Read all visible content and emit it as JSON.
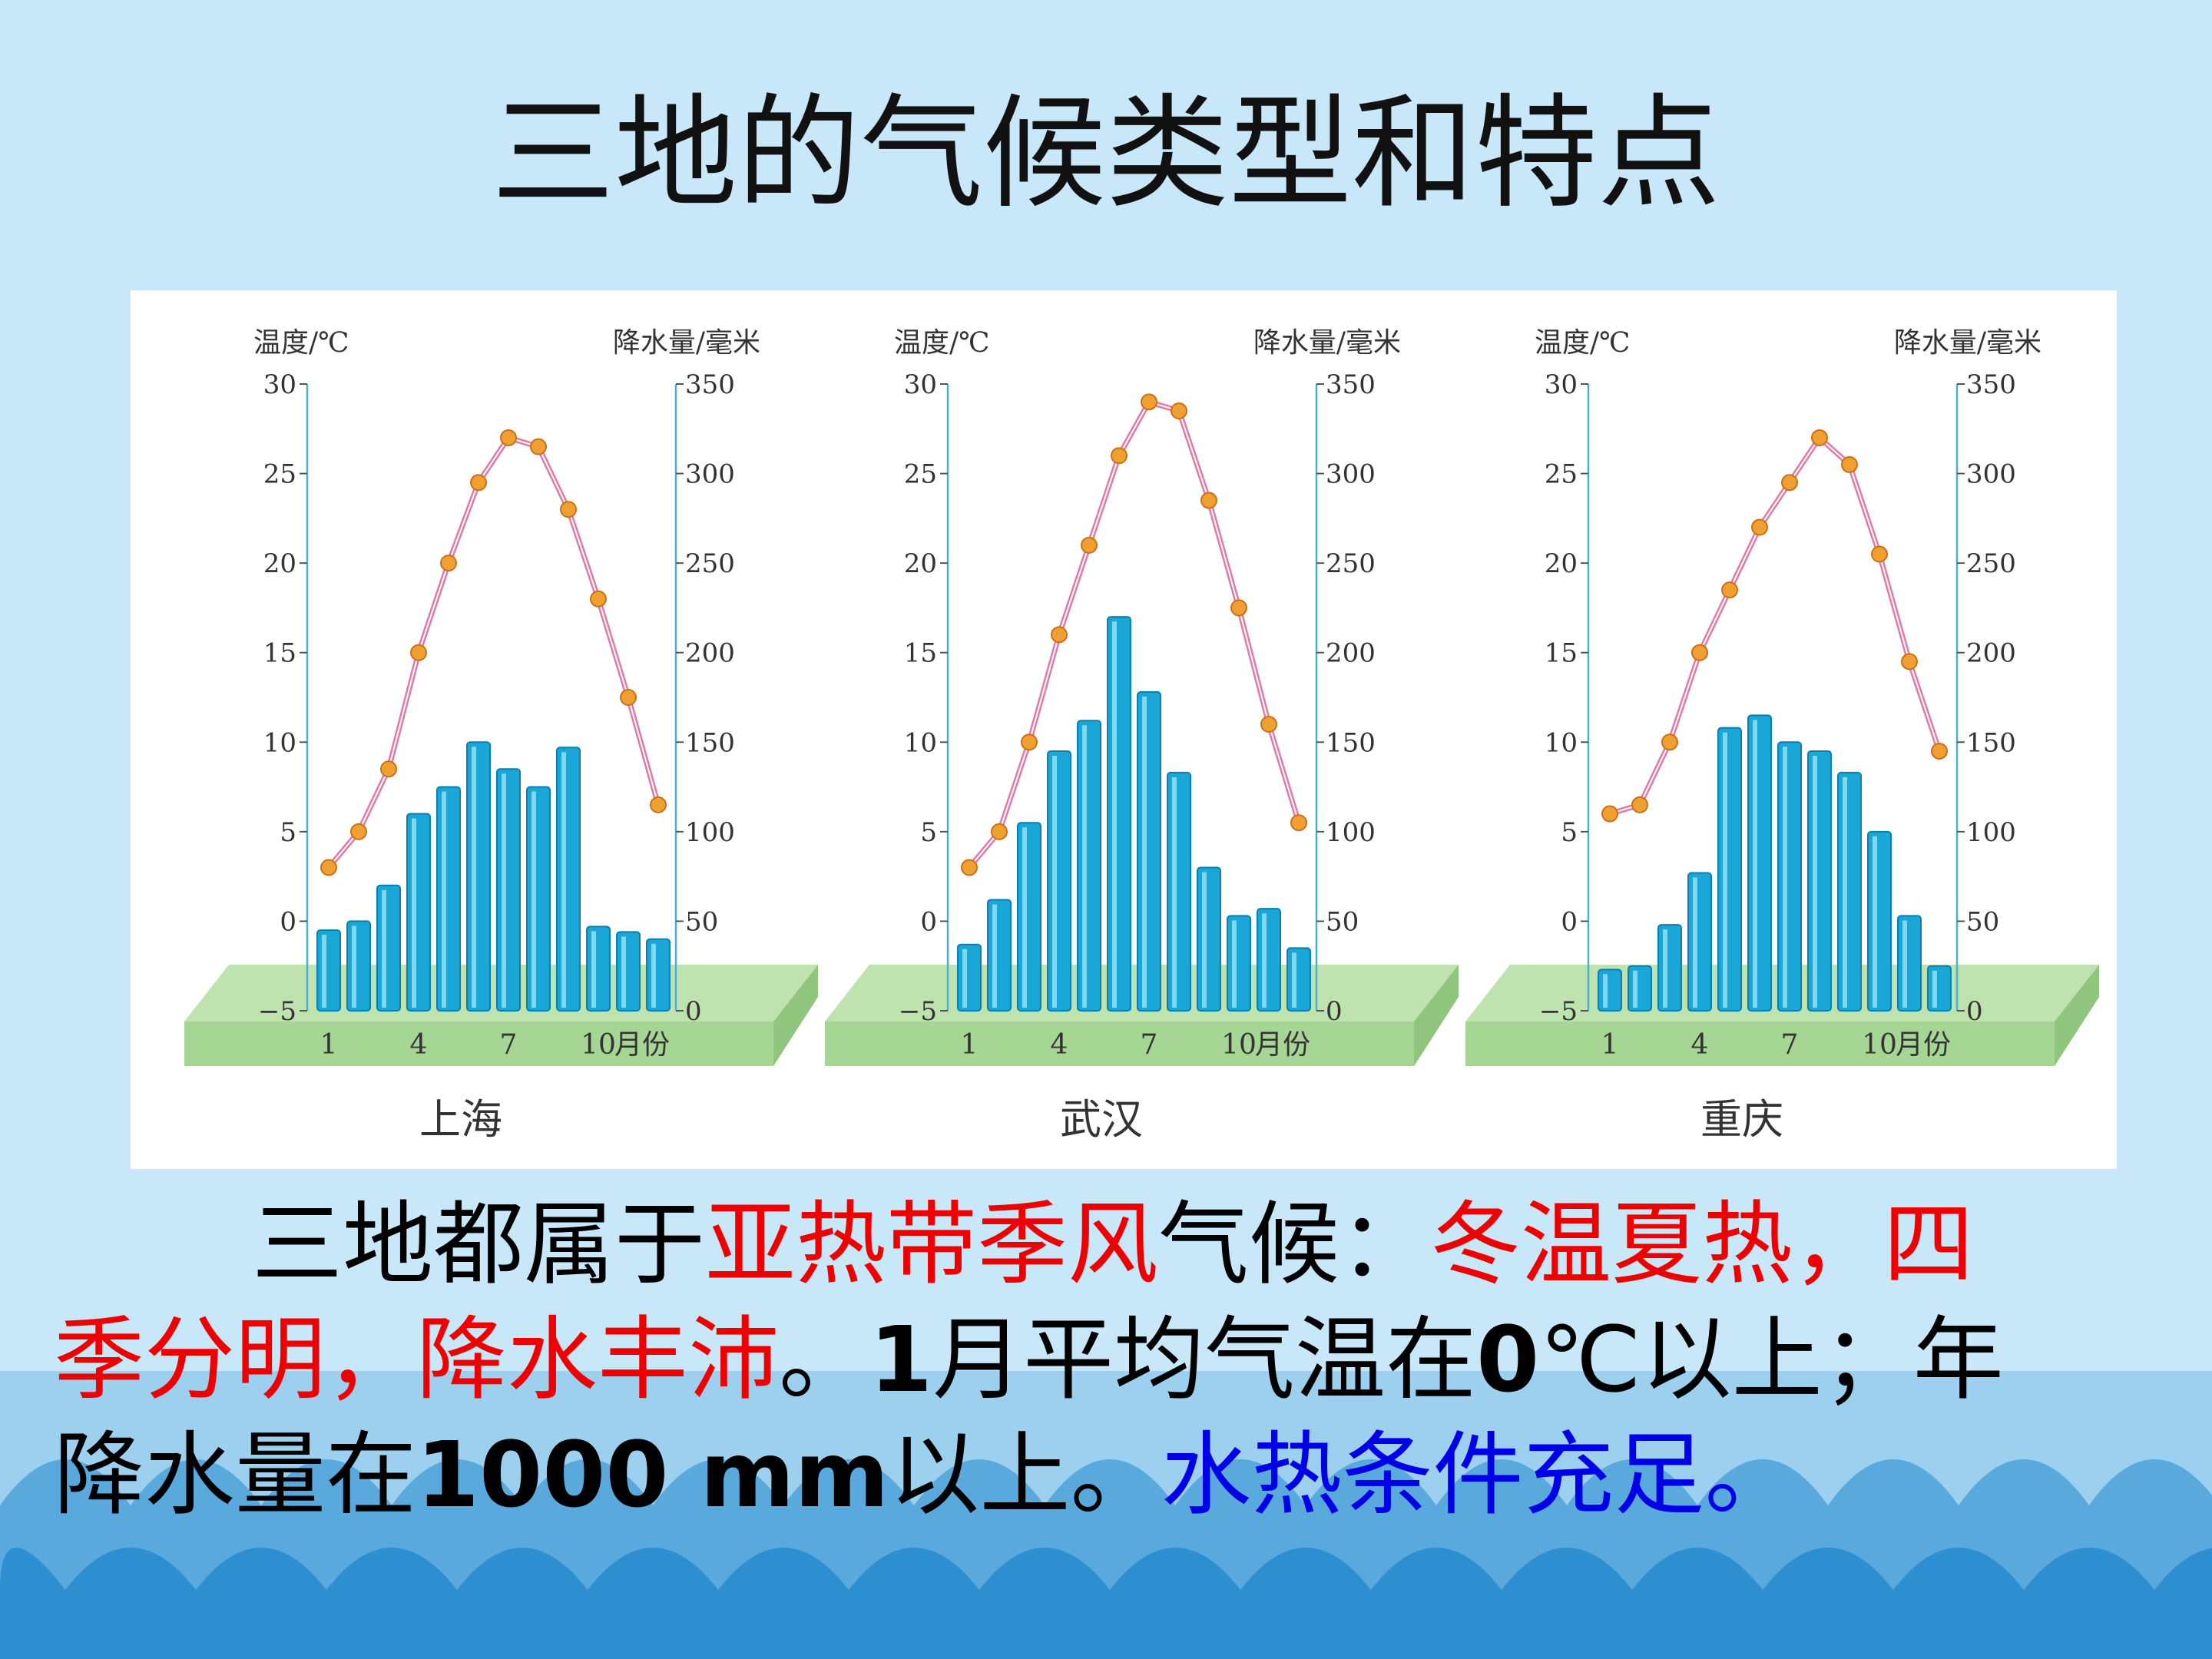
{
  "title": "三地的气候类型和特点",
  "colors": {
    "background": "#c8e7f8",
    "wave": "#2d8fd0",
    "bar": "#1aa6d6",
    "line": "#e07aa6",
    "point": "#f0a030",
    "platform": "#a6d694",
    "red_text": "#ee0000",
    "blue_text": "#0000e6"
  },
  "chart_data": [
    {
      "type": "bar+line",
      "title": "上海",
      "x_ticks": [
        "1",
        "4",
        "7",
        "10"
      ],
      "x_unit": "月份",
      "y_left_label": "温度/℃",
      "y_right_label": "降水量/毫米",
      "y_left_ticks": [
        "30",
        "25",
        "20",
        "15",
        "10",
        "5",
        "0",
        "−5"
      ],
      "y_right_ticks": [
        "350",
        "300",
        "250",
        "200",
        "150",
        "100",
        "50",
        "0"
      ],
      "y_left_lim": [
        -5,
        30
      ],
      "y_right_lim": [
        0,
        350
      ],
      "months": [
        1,
        2,
        3,
        4,
        5,
        6,
        7,
        8,
        9,
        10,
        11,
        12
      ],
      "series": [
        {
          "name": "降水量",
          "kind": "bar",
          "values": [
            45,
            50,
            70,
            110,
            125,
            150,
            135,
            125,
            147,
            47,
            44,
            40
          ]
        },
        {
          "name": "温度",
          "kind": "line",
          "values": [
            3,
            5,
            8.5,
            15,
            20,
            24.5,
            27,
            26.5,
            23,
            18,
            12.5,
            6.5
          ]
        }
      ]
    },
    {
      "type": "bar+line",
      "title": "武汉",
      "x_ticks": [
        "1",
        "4",
        "7",
        "10"
      ],
      "x_unit": "月份",
      "y_left_label": "温度/℃",
      "y_right_label": "降水量/毫米",
      "y_left_ticks": [
        "30",
        "25",
        "20",
        "15",
        "10",
        "5",
        "0",
        "−5"
      ],
      "y_right_ticks": [
        "350",
        "300",
        "250",
        "200",
        "150",
        "100",
        "50",
        "0"
      ],
      "y_left_lim": [
        -5,
        30
      ],
      "y_right_lim": [
        0,
        350
      ],
      "months": [
        1,
        2,
        3,
        4,
        5,
        6,
        7,
        8,
        9,
        10,
        11,
        12
      ],
      "series": [
        {
          "name": "降水量",
          "kind": "bar",
          "values": [
            37,
            62,
            105,
            145,
            162,
            220,
            178,
            133,
            80,
            53,
            57,
            35
          ]
        },
        {
          "name": "温度",
          "kind": "line",
          "values": [
            3,
            5,
            10,
            16,
            21,
            26,
            29,
            28.5,
            23.5,
            17.5,
            11,
            5.5
          ]
        }
      ]
    },
    {
      "type": "bar+line",
      "title": "重庆",
      "x_ticks": [
        "1",
        "4",
        "7",
        "10"
      ],
      "x_unit": "月份",
      "y_left_label": "温度/℃",
      "y_right_label": "降水量/毫米",
      "y_left_ticks": [
        "30",
        "25",
        "20",
        "15",
        "10",
        "5",
        "0",
        "−5"
      ],
      "y_right_ticks": [
        "350",
        "300",
        "250",
        "200",
        "150",
        "100",
        "50",
        "0"
      ],
      "y_left_lim": [
        -5,
        30
      ],
      "y_right_lim": [
        0,
        350
      ],
      "months": [
        1,
        2,
        3,
        4,
        5,
        6,
        7,
        8,
        9,
        10,
        11,
        12
      ],
      "series": [
        {
          "name": "降水量",
          "kind": "bar",
          "values": [
            23,
            25,
            48,
            77,
            158,
            165,
            150,
            145,
            133,
            100,
            53,
            25
          ]
        },
        {
          "name": "温度",
          "kind": "line",
          "values": [
            6,
            6.5,
            10,
            15,
            18.5,
            22,
            24.5,
            27,
            25.5,
            20.5,
            14.5,
            9.5
          ]
        }
      ]
    }
  ],
  "summary": {
    "line1": [
      {
        "t": "三地都属于",
        "style": ""
      },
      {
        "t": "亚热带季风",
        "style": "red"
      },
      {
        "t": "气候：",
        "style": ""
      },
      {
        "t": "冬温夏热，四",
        "style": "red"
      }
    ],
    "line2": [
      {
        "t": "季分明，降水丰沛",
        "style": "red"
      },
      {
        "t": "。",
        "style": ""
      },
      {
        "t": "1",
        "style": "bold"
      },
      {
        "t": "月平均气温在",
        "style": ""
      },
      {
        "t": "0",
        "style": "bold"
      },
      {
        "t": "℃以上；年",
        "style": ""
      }
    ],
    "line3": [
      {
        "t": "降水量在",
        "style": ""
      },
      {
        "t": "1000 mm",
        "style": "bold"
      },
      {
        "t": "以上。",
        "style": ""
      },
      {
        "t": "水热条件充足。",
        "style": "blue"
      }
    ]
  }
}
